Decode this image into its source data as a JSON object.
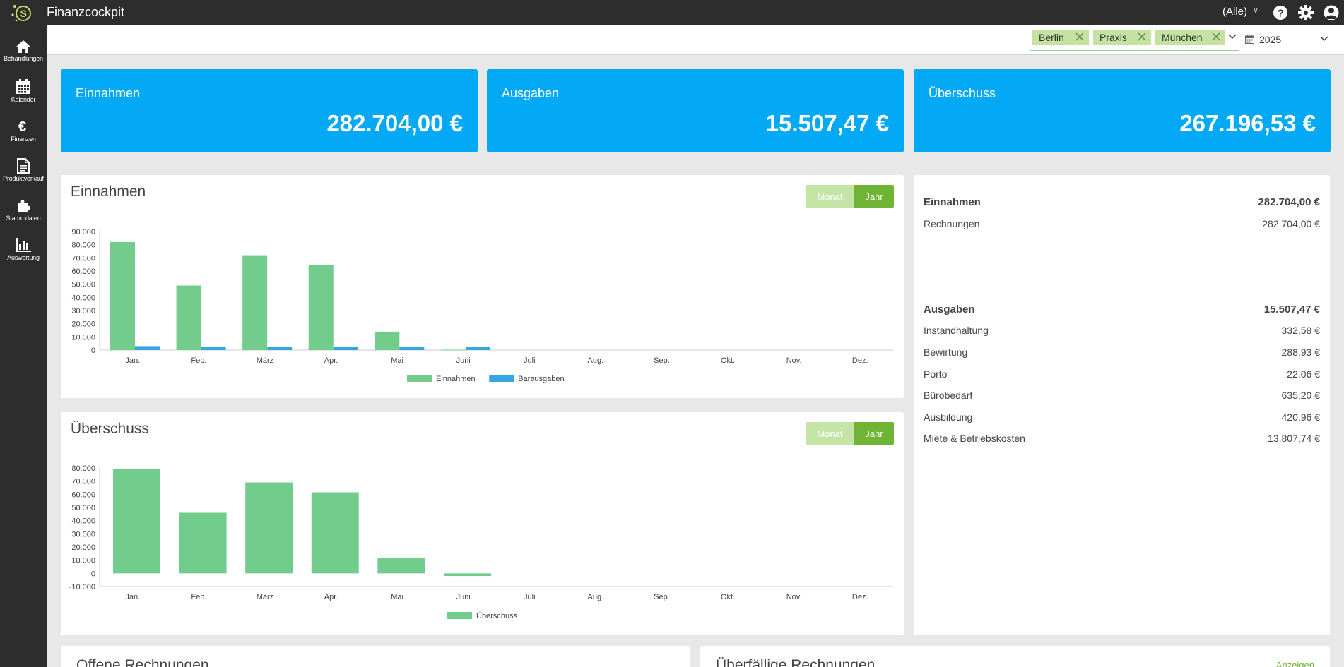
{
  "app": {
    "title": "Finanzcockpit"
  },
  "header": {
    "scope_value": "(Alle)"
  },
  "sidebar": {
    "items": [
      {
        "label": "Behandlungen",
        "icon": "home-icon"
      },
      {
        "label": "Kalender",
        "icon": "calendar-icon"
      },
      {
        "label": "Finanzen",
        "icon": "euro-icon"
      },
      {
        "label": "Produktverkauf",
        "icon": "document-icon"
      },
      {
        "label": "Stammdaten",
        "icon": "puzzle-icon"
      },
      {
        "label": "Auswertung",
        "icon": "bar-chart-icon"
      }
    ]
  },
  "filters": {
    "locations": [
      "Berlin",
      "Praxis",
      "München"
    ],
    "year": "2025"
  },
  "kpis": [
    {
      "label": "Einnahmen",
      "value": "282.704,00 €"
    },
    {
      "label": "Ausgaben",
      "value": "15.507,47 €"
    },
    {
      "label": "Überschuss",
      "value": "267.196,53 €"
    }
  ],
  "toggle": {
    "month_label": "Monat",
    "year_label": "Jahr",
    "active": "Jahr"
  },
  "income_panel": {
    "title": "Einnahmen"
  },
  "surplus_panel": {
    "title": "Überschuss"
  },
  "chart_data": [
    {
      "type": "bar",
      "title": "Einnahmen",
      "categories": [
        "Jan.",
        "Feb.",
        "März",
        "Apr.",
        "Mai",
        "Juni",
        "Juli",
        "Aug.",
        "Sep.",
        "Okt.",
        "Nov.",
        "Dez."
      ],
      "series": [
        {
          "name": "Einnahmen",
          "color": "#72cd8c",
          "values": [
            82000,
            49000,
            72000,
            64500,
            14000,
            300,
            0,
            0,
            0,
            0,
            0,
            0
          ]
        },
        {
          "name": "Barausgaben",
          "color": "#35a7e0",
          "values": [
            3000,
            2500,
            2500,
            2300,
            2200,
            2200,
            0,
            0,
            0,
            0,
            0,
            0
          ]
        }
      ],
      "y_ticks": [
        "90.000",
        "80.000",
        "70.000",
        "60.000",
        "50.000",
        "40.000",
        "30.000",
        "20.000",
        "10.000",
        "0"
      ],
      "ylim": [
        0,
        90000
      ],
      "legend": "bottom-center"
    },
    {
      "type": "bar",
      "title": "Überschuss",
      "categories": [
        "Jan.",
        "Feb.",
        "März",
        "Apr.",
        "Mai",
        "Juni",
        "Juli",
        "Aug.",
        "Sep.",
        "Okt.",
        "Nov.",
        "Dez."
      ],
      "series": [
        {
          "name": "Überschuss",
          "color": "#72cd8c",
          "values": [
            79000,
            46000,
            69000,
            61500,
            11800,
            -2000,
            0,
            0,
            0,
            0,
            0,
            0
          ]
        }
      ],
      "y_ticks": [
        "80.000",
        "70.000",
        "60.000",
        "50.000",
        "40.000",
        "30.000",
        "20.000",
        "10.000",
        "0",
        "-10.000"
      ],
      "ylim": [
        -10000,
        80000
      ],
      "legend": "bottom-center"
    }
  ],
  "summary": {
    "income_label": "Einnahmen",
    "income_total": "282.704,00 €",
    "income_items": [
      {
        "label": "Rechnungen",
        "value": "282.704,00 €"
      }
    ],
    "expense_label": "Ausgaben",
    "expense_total": "15.507,47 €",
    "expense_items": [
      {
        "label": "Instandhaltung",
        "value": "332,58 €"
      },
      {
        "label": "Bewirtung",
        "value": "288,93 €"
      },
      {
        "label": "Porto",
        "value": "22,06 €"
      },
      {
        "label": "Bürobedarf",
        "value": "635,20 €"
      },
      {
        "label": "Ausbildung",
        "value": "420,96 €"
      },
      {
        "label": "Miete & Betriebskosten",
        "value": "13.807,74 €"
      }
    ]
  },
  "bottom": {
    "open_title": "Offene Rechnungen",
    "overdue_title": "Überfällige Rechnungen",
    "show_link": "Anzeigen"
  }
}
